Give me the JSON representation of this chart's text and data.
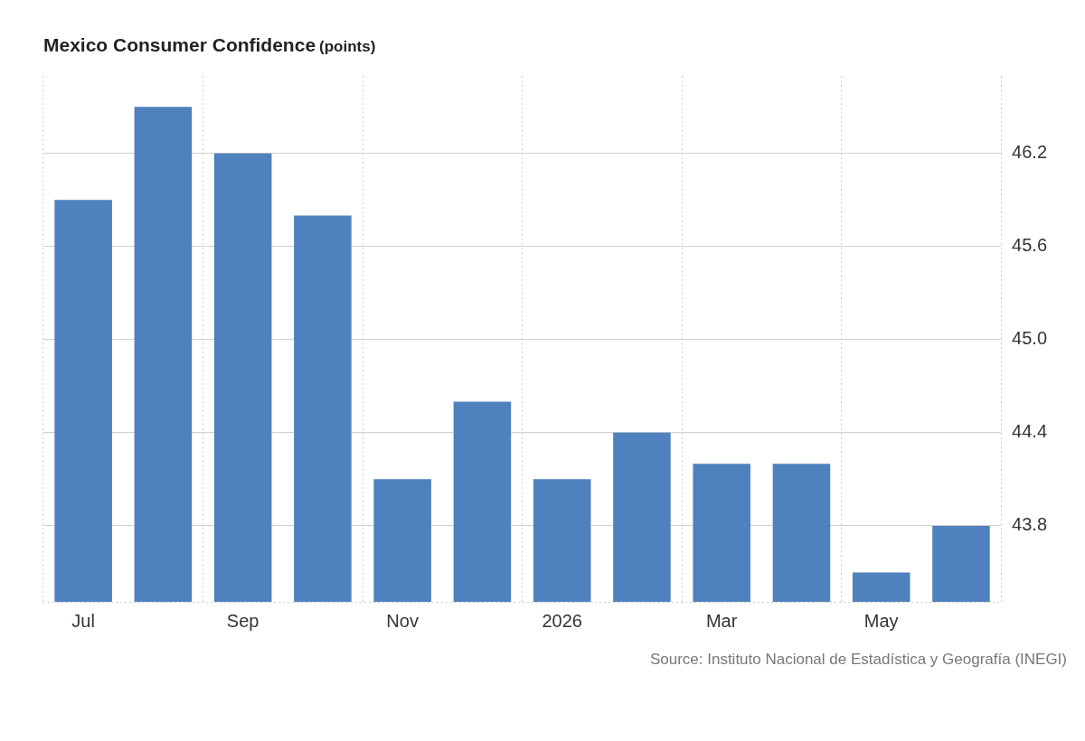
{
  "chart_data": {
    "type": "bar",
    "title": "Mexico Consumer Confidence",
    "subtitle": "(points)",
    "categories": [
      "Jul",
      null,
      "Sep",
      null,
      "Nov",
      null,
      "2026",
      null,
      "Mar",
      null,
      "May",
      null
    ],
    "values": [
      45.9,
      46.5,
      46.2,
      45.8,
      44.1,
      44.6,
      44.1,
      44.4,
      44.2,
      44.2,
      43.5,
      43.8
    ],
    "color": "#4e81bd",
    "ylim": [
      43.31,
      46.7
    ],
    "yticks": [
      43.8,
      44.4,
      {
        "value": 45,
        "label": "45.0"
      },
      45.6,
      46.2
    ],
    "grid": true,
    "annotations": [
      "Source: Instituto Nacional de Estadística y Geografía (INEGI)"
    ]
  }
}
